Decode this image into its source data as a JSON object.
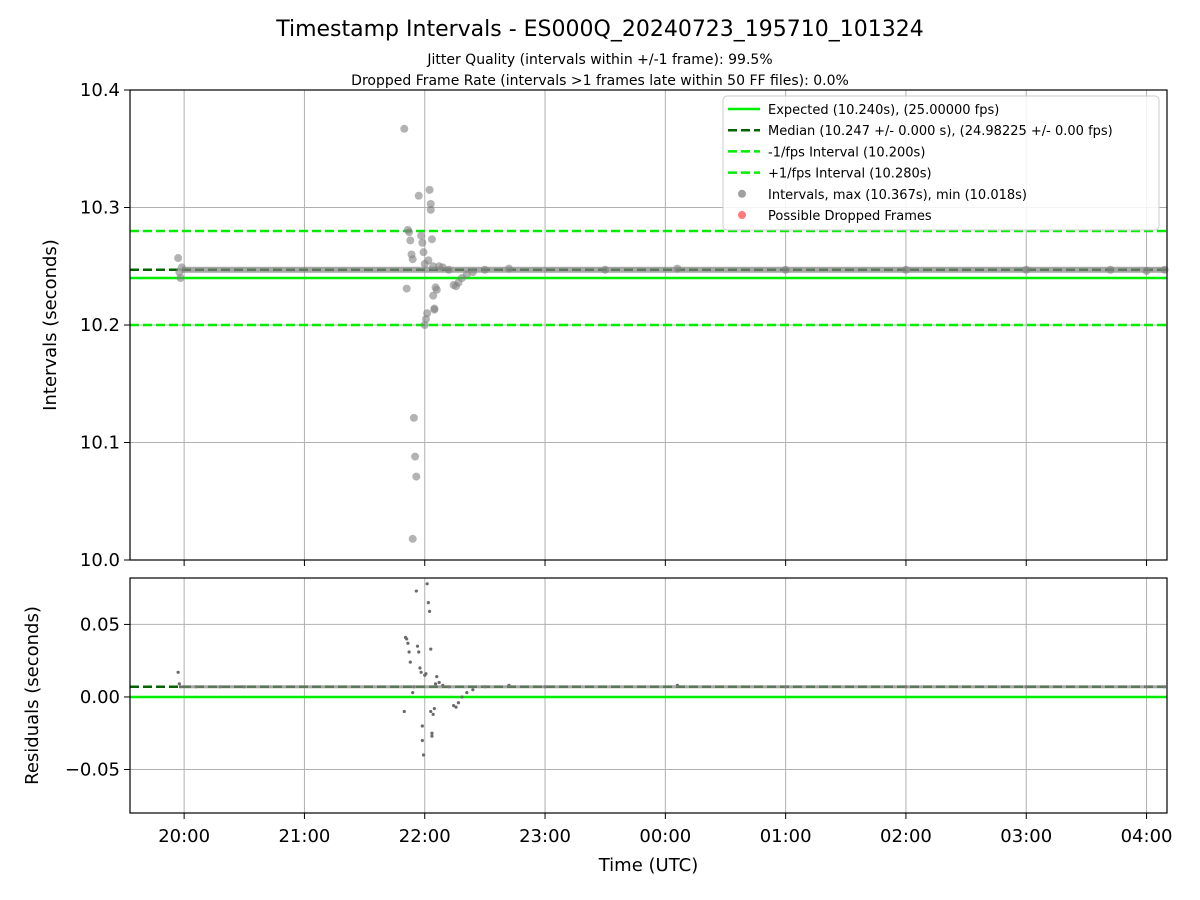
{
  "figure": {
    "title": "Timestamp Intervals - ES000Q_20240723_195710_101324",
    "subtitle_1": "Jitter Quality (intervals within +/-1 frame): 99.5%",
    "subtitle_2": "Dropped Frame Rate (intervals >1 frames late within 50 FF files): 0.0%"
  },
  "colors": {
    "expected": "#00ee00",
    "median": "#006400",
    "bounds": "#00ee00",
    "points": "#808080",
    "dropped": "#ff4d4d",
    "grid": "#b0b0b0"
  },
  "chart_data": [
    {
      "type": "scatter",
      "panel": "intervals",
      "xlabel": "",
      "ylabel": "Intervals (seconds)",
      "x_unit": "hours since 00:00 UTC (values > 24 are the next day)",
      "xlim": [
        19.55,
        28.17
      ],
      "ylim": [
        10.0,
        10.4
      ],
      "yticks": [
        10.0,
        10.1,
        10.2,
        10.3,
        10.4
      ],
      "ytick_labels": [
        "10.0",
        "10.1",
        "10.2",
        "10.3",
        "10.4"
      ],
      "grid": true,
      "legend_position": "top-right",
      "hlines": [
        {
          "key": "expected",
          "y": 10.24,
          "style": "solid",
          "label": "Expected (10.240s), (25.00000 fps)"
        },
        {
          "key": "median",
          "y": 10.247,
          "style": "dashed",
          "label": "Median (10.247 +/- 0.000 s), (24.98225 +/- 0.00 fps)"
        },
        {
          "key": "minus1",
          "y": 10.2,
          "style": "dashed",
          "label": "-1/fps Interval (10.200s)"
        },
        {
          "key": "plus1",
          "y": 10.28,
          "style": "dashed",
          "label": "+1/fps Interval (10.280s)"
        }
      ],
      "series": [
        {
          "name": "Intervals, max (10.367s), min (10.018s)",
          "key": "intervals",
          "points": [
            [
              19.95,
              10.257
            ],
            [
              19.96,
              10.245
            ],
            [
              19.97,
              10.24
            ],
            [
              19.98,
              10.249
            ],
            [
              21.83,
              10.367
            ],
            [
              21.85,
              10.231
            ],
            [
              21.86,
              10.281
            ],
            [
              21.87,
              10.279
            ],
            [
              21.88,
              10.272
            ],
            [
              21.89,
              10.26
            ],
            [
              21.9,
              10.256
            ],
            [
              21.91,
              10.121
            ],
            [
              21.92,
              10.088
            ],
            [
              21.93,
              10.071
            ],
            [
              21.9,
              10.018
            ],
            [
              21.95,
              10.31
            ],
            [
              21.97,
              10.276
            ],
            [
              21.98,
              10.27
            ],
            [
              21.99,
              10.262
            ],
            [
              22.0,
              10.252
            ],
            [
              22.0,
              10.2
            ],
            [
              22.01,
              10.205
            ],
            [
              22.02,
              10.21
            ],
            [
              22.03,
              10.255
            ],
            [
              22.04,
              10.315
            ],
            [
              22.05,
              10.303
            ],
            [
              22.05,
              10.298
            ],
            [
              22.06,
              10.273
            ],
            [
              22.07,
              10.25
            ],
            [
              22.07,
              10.225
            ],
            [
              22.08,
              10.214
            ],
            [
              22.08,
              10.213
            ],
            [
              22.09,
              10.232
            ],
            [
              22.1,
              10.23
            ],
            [
              22.12,
              10.25
            ],
            [
              22.15,
              10.249
            ],
            [
              22.2,
              10.247
            ],
            [
              22.24,
              10.234
            ],
            [
              22.26,
              10.233
            ],
            [
              22.28,
              10.236
            ],
            [
              22.31,
              10.24
            ],
            [
              22.35,
              10.243
            ],
            [
              22.4,
              10.245
            ],
            [
              22.5,
              10.247
            ],
            [
              22.7,
              10.248
            ],
            [
              23.5,
              10.247
            ],
            [
              24.1,
              10.248
            ],
            [
              25.0,
              10.247
            ],
            [
              26.0,
              10.247
            ],
            [
              27.0,
              10.247
            ],
            [
              27.7,
              10.247
            ],
            [
              28.0,
              10.246
            ],
            [
              28.15,
              10.247
            ]
          ]
        },
        {
          "name": "Possible Dropped Frames",
          "key": "dropped",
          "points": []
        }
      ]
    },
    {
      "type": "scatter",
      "panel": "residuals",
      "xlabel": "Time (UTC)",
      "ylabel": "Residuals (seconds)",
      "x_unit": "hours since 00:00 UTC (values > 24 are the next day)",
      "xlim": [
        19.55,
        28.17
      ],
      "ylim": [
        -0.08,
        0.082
      ],
      "yticks": [
        -0.05,
        0.0,
        0.05
      ],
      "ytick_labels": [
        "−0.05",
        "0.00",
        "0.05"
      ],
      "xticks": [
        20,
        21,
        22,
        23,
        24,
        25,
        26,
        27,
        28
      ],
      "xtick_labels": [
        "20:00",
        "21:00",
        "22:00",
        "23:00",
        "00:00",
        "01:00",
        "02:00",
        "03:00",
        "04:00"
      ],
      "grid": true,
      "hlines": [
        {
          "key": "zero",
          "y": 0.0,
          "style": "solid"
        },
        {
          "key": "median",
          "y": 0.007,
          "style": "dashed"
        }
      ],
      "series": [
        {
          "name": "",
          "key": "residuals",
          "points": [
            [
              19.95,
              0.017
            ],
            [
              19.96,
              0.009
            ],
            [
              19.97,
              0.007
            ],
            [
              20.1,
              0.007
            ],
            [
              20.3,
              0.007
            ],
            [
              20.5,
              0.007
            ],
            [
              21.83,
              -0.01
            ],
            [
              21.84,
              0.041
            ],
            [
              21.85,
              0.04
            ],
            [
              21.86,
              0.037
            ],
            [
              21.87,
              0.031
            ],
            [
              21.88,
              0.024
            ],
            [
              21.9,
              0.003
            ],
            [
              21.91,
              0.007
            ],
            [
              21.93,
              0.073
            ],
            [
              21.94,
              0.035
            ],
            [
              21.95,
              0.031
            ],
            [
              21.96,
              0.02
            ],
            [
              21.97,
              0.017
            ],
            [
              21.98,
              -0.02
            ],
            [
              21.98,
              -0.03
            ],
            [
              21.99,
              -0.04
            ],
            [
              22.0,
              0.015
            ],
            [
              22.01,
              0.016
            ],
            [
              22.02,
              0.078
            ],
            [
              22.03,
              0.065
            ],
            [
              22.04,
              0.059
            ],
            [
              22.05,
              0.033
            ],
            [
              22.05,
              -0.01
            ],
            [
              22.06,
              -0.025
            ],
            [
              22.06,
              -0.027
            ],
            [
              22.07,
              -0.012
            ],
            [
              22.08,
              -0.008
            ],
            [
              22.09,
              0.009
            ],
            [
              22.1,
              0.014
            ],
            [
              22.12,
              0.01
            ],
            [
              22.15,
              0.008
            ],
            [
              22.2,
              0.007
            ],
            [
              22.24,
              -0.006
            ],
            [
              22.26,
              -0.007
            ],
            [
              22.28,
              -0.004
            ],
            [
              22.31,
              0.0
            ],
            [
              22.35,
              0.003
            ],
            [
              22.4,
              0.005
            ],
            [
              22.5,
              0.007
            ],
            [
              22.7,
              0.008
            ],
            [
              23.0,
              0.007
            ],
            [
              24.1,
              0.008
            ],
            [
              25.0,
              0.007
            ],
            [
              26.0,
              0.007
            ],
            [
              27.0,
              0.007
            ],
            [
              28.0,
              0.007
            ],
            [
              28.15,
              0.007
            ]
          ]
        }
      ]
    }
  ]
}
